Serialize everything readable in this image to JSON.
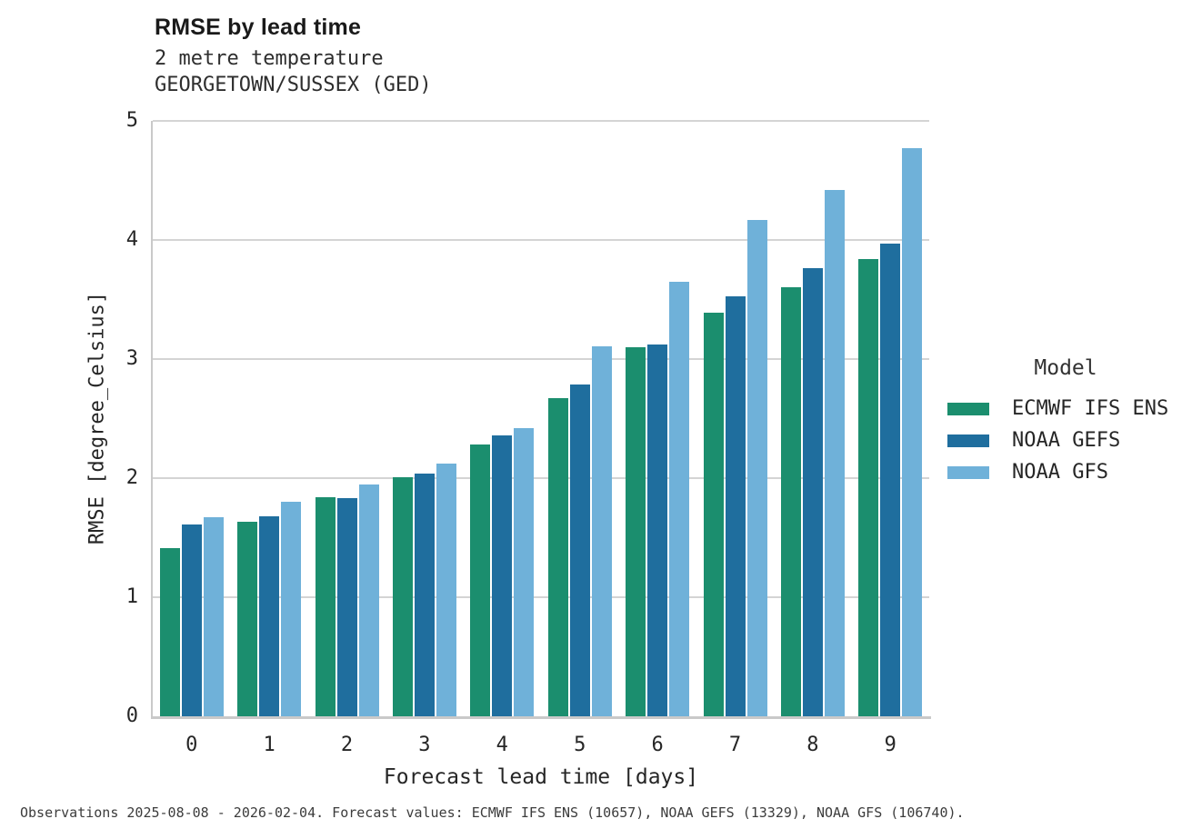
{
  "title": "RMSE by lead time",
  "subtitle_lines": [
    "2 metre temperature",
    "GEORGETOWN/SUSSEX (GED)"
  ],
  "caption": "Observations 2025-08-08 - 2026-02-04. Forecast values: ECMWF IFS ENS (10657), NOAA GEFS (13329), NOAA GFS (106740).",
  "legend": {
    "title": "Model",
    "items": [
      {
        "label": "ECMWF IFS ENS",
        "color": "#1b8e6e"
      },
      {
        "label": "NOAA GEFS",
        "color": "#1f6e9e"
      },
      {
        "label": "NOAA GFS",
        "color": "#6fb1d9"
      }
    ]
  },
  "colors": {
    "ecmwf_ifs_ens": "#1b8e6e",
    "noaa_gefs": "#1f6e9e",
    "noaa_gfs": "#6fb1d9",
    "gridline": "#d4d4d4",
    "spine": "#c9c9c9",
    "background": "#ffffff"
  },
  "chart_data": {
    "type": "bar",
    "title": "RMSE by lead time",
    "subtitle": "2 metre temperature, GEORGETOWN/SUSSEX (GED)",
    "xlabel": "Forecast lead time [days]",
    "ylabel": "RMSE [degree_Celsius]",
    "categories": [
      "0",
      "1",
      "2",
      "3",
      "4",
      "5",
      "6",
      "7",
      "8",
      "9"
    ],
    "ylim": [
      0,
      5
    ],
    "yticks": [
      0,
      1,
      2,
      3,
      4,
      5
    ],
    "grid": true,
    "legend_title": "Model",
    "legend_position": "right",
    "series": [
      {
        "name": "ECMWF IFS ENS",
        "color": "#1b8e6e",
        "values": [
          1.41,
          1.63,
          1.84,
          2.01,
          2.28,
          2.67,
          3.1,
          3.39,
          3.6,
          3.84
        ]
      },
      {
        "name": "NOAA GEFS",
        "color": "#1f6e9e",
        "values": [
          1.61,
          1.68,
          1.83,
          2.04,
          2.36,
          2.79,
          3.12,
          3.53,
          3.76,
          3.97
        ]
      },
      {
        "name": "NOAA GFS",
        "color": "#6fb1d9",
        "values": [
          1.67,
          1.8,
          1.95,
          2.12,
          2.42,
          3.11,
          3.65,
          4.17,
          4.42,
          4.77
        ]
      }
    ]
  }
}
